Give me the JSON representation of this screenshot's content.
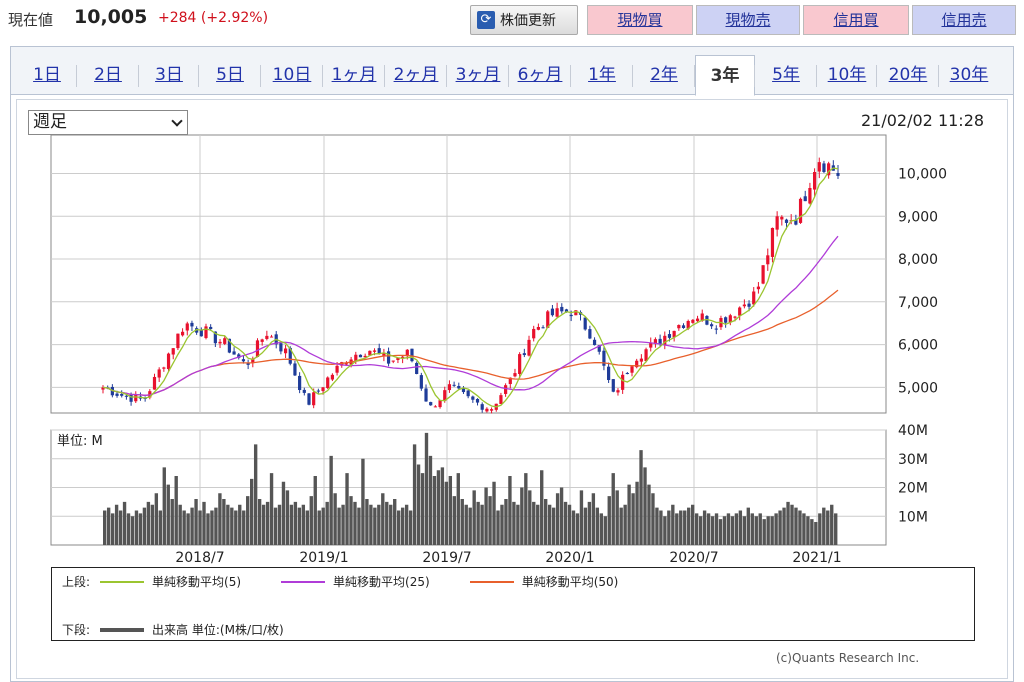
{
  "header": {
    "price_label": "現在値",
    "price_value": "10,005",
    "price_change": "+284 (+2.92%)",
    "refresh_label": "株価更新",
    "refresh_icon": "refresh-icon",
    "buttons": [
      "現物買",
      "現物売",
      "信用買",
      "信用売"
    ]
  },
  "tabs": [
    "1日",
    "2日",
    "3日",
    "5日",
    "10日",
    "1ヶ月",
    "2ヶ月",
    "3ヶ月",
    "6ヶ月",
    "1年",
    "2年",
    "3年",
    "5年",
    "10年",
    "20年",
    "30年"
  ],
  "active_tab": "3年",
  "period_select": {
    "value": "週足"
  },
  "timestamp": "21/02/02 11:28",
  "colors": {
    "up": "#e8112d",
    "down": "#1f3c99",
    "ma5": "#9bc530",
    "ma25": "#b03cd8",
    "ma50": "#e8602c",
    "volume": "#555555"
  },
  "chart_data": [
    {
      "type": "candlestick",
      "title": "",
      "ylim": [
        4400,
        10900
      ],
      "yticks": [
        5000,
        6000,
        7000,
        8000,
        9000,
        10000
      ],
      "ytick_labels": [
        "5,000",
        "6,000",
        "7,000",
        "8,000",
        "9,000",
        "10,000"
      ],
      "xtick_labels": [
        "2018/7",
        "2019/1",
        "2019/7",
        "2020/1",
        "2020/7",
        "2021/1"
      ],
      "grid": true,
      "series": [
        {
          "name": "単純移動平均(5)",
          "type": "line"
        },
        {
          "name": "単純移動平均(25)",
          "type": "line"
        },
        {
          "name": "単純移動平均(50)",
          "type": "line"
        }
      ],
      "close_trend": [
        {
          "t": "2018/2",
          "v": 5000
        },
        {
          "t": "2018/3",
          "v": 4800
        },
        {
          "t": "2018/4",
          "v": 4700
        },
        {
          "t": "2018/5",
          "v": 5600
        },
        {
          "t": "2018/6",
          "v": 6500
        },
        {
          "t": "2018/7",
          "v": 6300
        },
        {
          "t": "2018/8",
          "v": 6000
        },
        {
          "t": "2018/9",
          "v": 5500
        },
        {
          "t": "2018/10",
          "v": 6300
        },
        {
          "t": "2018/11",
          "v": 5800
        },
        {
          "t": "2018/12",
          "v": 4600
        },
        {
          "t": "2019/1",
          "v": 5200
        },
        {
          "t": "2019/2",
          "v": 5700
        },
        {
          "t": "2019/3",
          "v": 5900
        },
        {
          "t": "2019/4",
          "v": 5600
        },
        {
          "t": "2019/5",
          "v": 5800
        },
        {
          "t": "2019/6",
          "v": 4500
        },
        {
          "t": "2019/7",
          "v": 5000
        },
        {
          "t": "2019/8",
          "v": 4700
        },
        {
          "t": "2019/9",
          "v": 4500
        },
        {
          "t": "2019/10",
          "v": 5200
        },
        {
          "t": "2019/11",
          "v": 6300
        },
        {
          "t": "2019/12",
          "v": 6700
        },
        {
          "t": "2020/1",
          "v": 6800
        },
        {
          "t": "2020/2",
          "v": 6200
        },
        {
          "t": "2020/3",
          "v": 4800
        },
        {
          "t": "2020/4",
          "v": 5700
        },
        {
          "t": "2020/5",
          "v": 6000
        },
        {
          "t": "2020/6",
          "v": 6400
        },
        {
          "t": "2020/7",
          "v": 6700
        },
        {
          "t": "2020/8",
          "v": 6500
        },
        {
          "t": "2020/9",
          "v": 6800
        },
        {
          "t": "2020/10",
          "v": 7200
        },
        {
          "t": "2020/11",
          "v": 8900
        },
        {
          "t": "2020/12",
          "v": 9000
        },
        {
          "t": "2021/1",
          "v": 10400
        },
        {
          "t": "2021/2",
          "v": 10005
        }
      ]
    },
    {
      "type": "bar",
      "title": "",
      "unit_label": "単位: M",
      "ylim": [
        0,
        40
      ],
      "ytick_labels": [
        "10M",
        "20M",
        "30M",
        "40M"
      ],
      "yticks": [
        10,
        20,
        30,
        40
      ],
      "series": [
        {
          "name": "出来高",
          "values": [
            12,
            13,
            11,
            14,
            12,
            15,
            11,
            10,
            12,
            11,
            13,
            15,
            14,
            18,
            12,
            27,
            21,
            16,
            24,
            14,
            12,
            11,
            13,
            16,
            12,
            15,
            11,
            12,
            13,
            18,
            16,
            14,
            13,
            12,
            14,
            12,
            17,
            23,
            35,
            16,
            14,
            15,
            25,
            13,
            14,
            22,
            19,
            14,
            15,
            13,
            14,
            12,
            17,
            24,
            12,
            13,
            15,
            31,
            18,
            13,
            14,
            25,
            17,
            15,
            13,
            30,
            16,
            14,
            13,
            14,
            18,
            15,
            14,
            16,
            12,
            13,
            14,
            12,
            35,
            28,
            25,
            39,
            31,
            24,
            26,
            27,
            22,
            24,
            17,
            25,
            16,
            14,
            13,
            19,
            15,
            14,
            20,
            17,
            22,
            12,
            14,
            16,
            24,
            15,
            14,
            20,
            25,
            19,
            15,
            14,
            26,
            16,
            14,
            13,
            18,
            20,
            15,
            14,
            12,
            11,
            19,
            13,
            15,
            18,
            13,
            11,
            10,
            17,
            25,
            19,
            13,
            14,
            21,
            18,
            22,
            33,
            27,
            21,
            18,
            13,
            12,
            10,
            12,
            14,
            11,
            12,
            12,
            13,
            14,
            11,
            10,
            12,
            11,
            10,
            11,
            9,
            10,
            11,
            10,
            11,
            12,
            10,
            13,
            11,
            10,
            11,
            9,
            10,
            10,
            11,
            12,
            13,
            15,
            14,
            13,
            12,
            11,
            10,
            9,
            8,
            11,
            13,
            12,
            14,
            11
          ]
        }
      ]
    }
  ],
  "legend": {
    "upper_label": "上段:",
    "lower_label": "下段:",
    "lower_item": "出来高 単位:(M株/口/枚)"
  },
  "copyright": "(c)Quants Research Inc."
}
